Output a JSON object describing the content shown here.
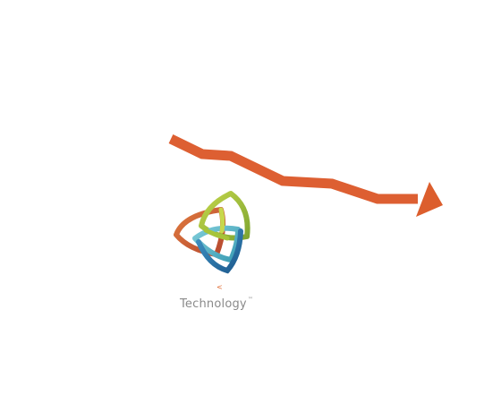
{
  "logo": {
    "caption": "Technology",
    "trademark": "™",
    "mark_glyph": "<",
    "icon": "interlocking-triangles-icon"
  },
  "trend_arrow": {
    "icon": "downward-trend-arrow-icon",
    "direction": "down-right"
  },
  "colors": {
    "arrow": "#dd5f32",
    "arrow_head": "#dc5e2d",
    "orange_loop": "#d3663a",
    "green_loop": "#a9c43a",
    "teal_loop": "#5ab7c9",
    "blue_loop": "#2672a8",
    "caption": "#8a8a8a",
    "mark": "#e0692e",
    "background": "#ffffff"
  }
}
